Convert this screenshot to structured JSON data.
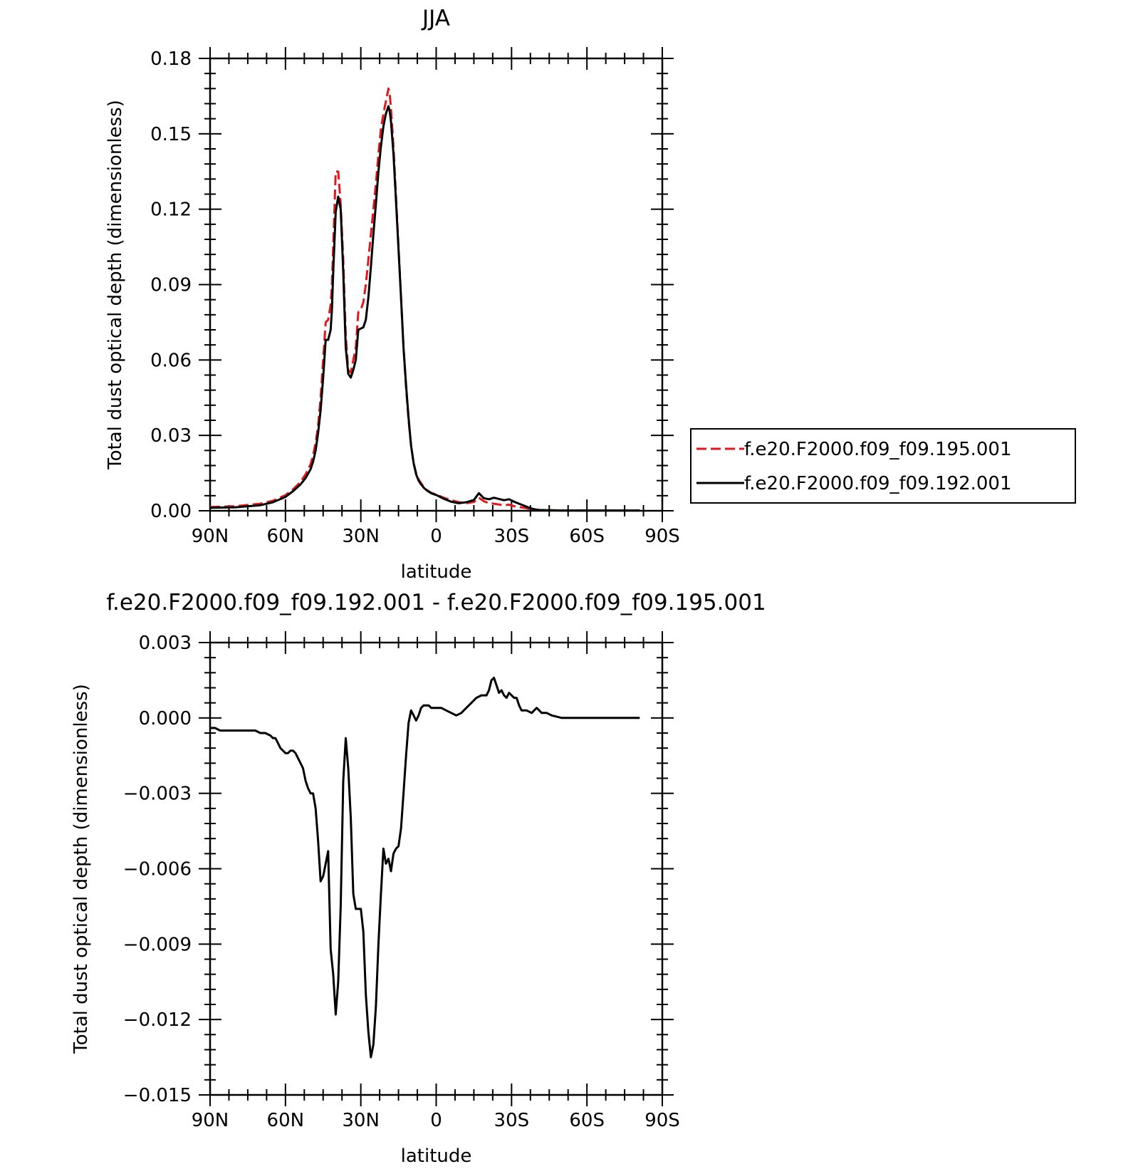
{
  "chart_data": [
    {
      "type": "line",
      "title": "JJA",
      "xlabel": "latitude",
      "ylabel": "Total dust optical depth (dimensionless)",
      "xlim": [
        90,
        -90
      ],
      "ylim": [
        0,
        0.18
      ],
      "x_ticks": [
        90,
        60,
        30,
        0,
        -30,
        -60,
        -90
      ],
      "x_tick_labels": [
        "90N",
        "60N",
        "30N",
        "0",
        "30S",
        "60S",
        "90S"
      ],
      "y_ticks": [
        0,
        0.03,
        0.06,
        0.09,
        0.12,
        0.15,
        0.18
      ],
      "y_tick_labels": [
        "0.00",
        "0.03",
        "0.06",
        "0.09",
        "0.12",
        "0.15",
        "0.18"
      ],
      "legend": {
        "placement": "right",
        "entries": [
          "f.e20.F2000.f09_f09.195.001",
          "f.e20.F2000.f09_f09.192.001"
        ]
      },
      "series": [
        {
          "name": "f.e20.F2000.f09_f09.195.001",
          "color": "#e4161b",
          "dash": true,
          "x": [
            90,
            80,
            70,
            65,
            60,
            57,
            54,
            52,
            50,
            49,
            48,
            47,
            46,
            45,
            44,
            43,
            42,
            41.5,
            41,
            40,
            39,
            38,
            37,
            36.5,
            36,
            35,
            34,
            33,
            32,
            31,
            30,
            29,
            28,
            27,
            26,
            25,
            24,
            23,
            22,
            21,
            20,
            19,
            18.5,
            18,
            17,
            16,
            15,
            14,
            13,
            12,
            11,
            10,
            9,
            8,
            7,
            6,
            5,
            4,
            3,
            2,
            1,
            0,
            -3,
            -6,
            -9,
            -12,
            -15,
            -17,
            -19,
            -21,
            -23,
            -25,
            -27,
            -29,
            -31,
            -33,
            -35,
            -37,
            -39,
            -41,
            -45,
            -50,
            -60,
            -70,
            -81
          ],
          "values": [
            0.0015,
            0.0018,
            0.0028,
            0.004,
            0.0062,
            0.0085,
            0.0115,
            0.0145,
            0.0185,
            0.022,
            0.027,
            0.034,
            0.045,
            0.06,
            0.075,
            0.076,
            0.082,
            0.09,
            0.105,
            0.135,
            0.135,
            0.122,
            0.1,
            0.085,
            0.07,
            0.056,
            0.055,
            0.06,
            0.065,
            0.079,
            0.08,
            0.083,
            0.09,
            0.1,
            0.11,
            0.12,
            0.13,
            0.142,
            0.152,
            0.158,
            0.163,
            0.168,
            0.166,
            0.16,
            0.145,
            0.125,
            0.105,
            0.085,
            0.065,
            0.049,
            0.036,
            0.026,
            0.019,
            0.015,
            0.0125,
            0.011,
            0.0095,
            0.0085,
            0.0078,
            0.0072,
            0.0068,
            0.0065,
            0.0052,
            0.0042,
            0.0034,
            0.003,
            0.0035,
            0.0052,
            0.0038,
            0.003,
            0.0028,
            0.0025,
            0.0022,
            0.0024,
            0.0018,
            0.0015,
            0.0012,
            0.0008,
            0.0005,
            0.0003,
            0.0002,
            0.0001,
            0.0001,
            0.0001,
            0.0001
          ]
        },
        {
          "name": "f.e20.F2000.f09_f09.192.001",
          "color": "#000000",
          "dash": false,
          "x": [
            90,
            80,
            70,
            65,
            60,
            57,
            54,
            52,
            50,
            49,
            48,
            47,
            46,
            45,
            44,
            43,
            42,
            41.5,
            41,
            40,
            39,
            38,
            37,
            36.5,
            36,
            35,
            34,
            33,
            32,
            31,
            30,
            29,
            28,
            27,
            26,
            25,
            24,
            23,
            22,
            21,
            20,
            19,
            18.5,
            18,
            17,
            16,
            15,
            14,
            13,
            12,
            11,
            10,
            9,
            8,
            7,
            6,
            5,
            4,
            3,
            2,
            1,
            0,
            -3,
            -6,
            -9,
            -12,
            -15,
            -17,
            -19,
            -21,
            -23,
            -25,
            -27,
            -29,
            -31,
            -33,
            -35,
            -37,
            -39,
            -41,
            -45,
            -50,
            -60,
            -70,
            -81
          ],
          "values": [
            0.0012,
            0.0014,
            0.0022,
            0.0034,
            0.0055,
            0.0078,
            0.0105,
            0.013,
            0.0165,
            0.0195,
            0.024,
            0.031,
            0.04,
            0.053,
            0.068,
            0.068,
            0.072,
            0.08,
            0.095,
            0.119,
            0.125,
            0.12,
            0.095,
            0.08,
            0.065,
            0.0545,
            0.053,
            0.056,
            0.06,
            0.072,
            0.0725,
            0.073,
            0.076,
            0.085,
            0.097,
            0.11,
            0.122,
            0.135,
            0.145,
            0.153,
            0.158,
            0.161,
            0.159,
            0.155,
            0.142,
            0.123,
            0.104,
            0.085,
            0.065,
            0.05,
            0.037,
            0.026,
            0.019,
            0.0145,
            0.012,
            0.0105,
            0.0092,
            0.0083,
            0.0076,
            0.007,
            0.0066,
            0.0063,
            0.0048,
            0.0036,
            0.003,
            0.0034,
            0.0043,
            0.007,
            0.005,
            0.0046,
            0.0052,
            0.0047,
            0.0042,
            0.0046,
            0.0036,
            0.0028,
            0.002,
            0.0012,
            0.0006,
            0.0003,
            0.0002,
            0.0001,
            0.0001,
            0.0001,
            0.0001
          ]
        }
      ]
    },
    {
      "type": "line",
      "title": "f.e20.F2000.f09_f09.192.001 - f.e20.F2000.f09_f09.195.001",
      "xlabel": "latitude",
      "ylabel": "Total dust optical depth (dimensionless)",
      "xlim": [
        90,
        -90
      ],
      "ylim": [
        -0.015,
        0.003
      ],
      "x_ticks": [
        90,
        60,
        30,
        0,
        -30,
        -60,
        -90
      ],
      "x_tick_labels": [
        "90N",
        "60N",
        "30N",
        "0",
        "30S",
        "60S",
        "90S"
      ],
      "y_ticks": [
        0.003,
        0.0,
        -0.003,
        -0.006,
        -0.009,
        -0.012,
        -0.015
      ],
      "y_tick_labels": [
        "0.003",
        "0.000",
        "−0.003",
        "−0.006",
        "−0.009",
        "−0.012",
        "−0.015"
      ],
      "series": [
        {
          "color": "#000000",
          "x": [
            90,
            88,
            86,
            84,
            82,
            80,
            78,
            76,
            74,
            72,
            70,
            68,
            66,
            65,
            64,
            63,
            62,
            61,
            60,
            59,
            58,
            57,
            56,
            55,
            54,
            53,
            52,
            51,
            50,
            49,
            48,
            47,
            46,
            45,
            44,
            43,
            42,
            41,
            40,
            39,
            38,
            37,
            36,
            35,
            34,
            33,
            32,
            31,
            30,
            29,
            28,
            27,
            26,
            25,
            24,
            23,
            22,
            21,
            20,
            19,
            18,
            17,
            16,
            15,
            14,
            13,
            12,
            11,
            10,
            9,
            8,
            7,
            6,
            5,
            4,
            3,
            2,
            1,
            0,
            -2,
            -4,
            -6,
            -8,
            -10,
            -12,
            -14,
            -16,
            -18,
            -20,
            -21,
            -22,
            -23,
            -24,
            -25,
            -26,
            -27,
            -28,
            -29,
            -30,
            -31,
            -32,
            -33,
            -34,
            -35,
            -36,
            -38,
            -40,
            -42,
            -44,
            -46,
            -50,
            -55,
            -60,
            -65,
            -70,
            -75,
            -81
          ],
          "values": [
            -0.0004,
            -0.0004,
            -0.0005,
            -0.0005,
            -0.0005,
            -0.0005,
            -0.0005,
            -0.0005,
            -0.0005,
            -0.0005,
            -0.0006,
            -0.0006,
            -0.0007,
            -0.0008,
            -0.0008,
            -0.001,
            -0.0012,
            -0.0013,
            -0.0014,
            -0.0014,
            -0.0013,
            -0.0013,
            -0.0014,
            -0.0016,
            -0.0018,
            -0.002,
            -0.0025,
            -0.0028,
            -0.003,
            -0.003,
            -0.0036,
            -0.0049,
            -0.0065,
            -0.0063,
            -0.0058,
            -0.0053,
            -0.0092,
            -0.0102,
            -0.0118,
            -0.0105,
            -0.0075,
            -0.0025,
            -0.0008,
            -0.002,
            -0.004,
            -0.007,
            -0.0076,
            -0.0076,
            -0.0076,
            -0.0085,
            -0.011,
            -0.0125,
            -0.0135,
            -0.013,
            -0.0115,
            -0.009,
            -0.007,
            -0.0052,
            -0.0058,
            -0.0056,
            -0.0061,
            -0.0054,
            -0.0052,
            -0.0051,
            -0.0044,
            -0.003,
            -0.0015,
            -0.0002,
            0.0003,
            0.0001,
            -0.0001,
            0.0001,
            0.0004,
            0.0005,
            0.0005,
            0.0005,
            0.0004,
            0.0004,
            0.0004,
            0.0004,
            0.0003,
            0.0002,
            0.0001,
            0.0002,
            0.0004,
            0.0006,
            0.0008,
            0.0009,
            0.0009,
            0.0011,
            0.0015,
            0.0016,
            0.0013,
            0.001,
            0.0011,
            0.0009,
            0.0008,
            0.001,
            0.0009,
            0.0008,
            0.0008,
            0.0005,
            0.0003,
            0.0003,
            0.0003,
            0.0002,
            0.0004,
            0.0002,
            0.0002,
            0.0001,
            0.0,
            0.0,
            0.0,
            0.0,
            0.0,
            0.0,
            0.0
          ]
        }
      ]
    }
  ]
}
